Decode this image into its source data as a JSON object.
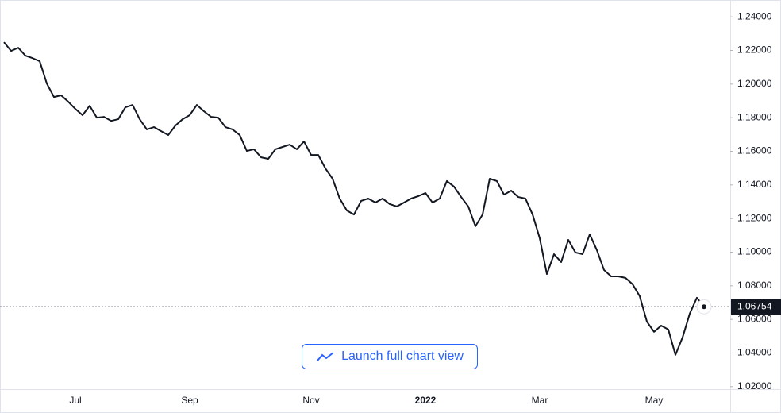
{
  "chart_data": {
    "type": "line",
    "categories": [
      null,
      null,
      null,
      null,
      null,
      null,
      null,
      null,
      null,
      null,
      "Jul",
      null,
      null,
      null,
      null,
      null,
      null,
      null,
      null,
      null,
      null,
      null,
      null,
      null,
      null,
      null,
      "Sep",
      null,
      null,
      null,
      null,
      null,
      null,
      null,
      null,
      null,
      null,
      null,
      null,
      null,
      null,
      null,
      null,
      "Nov",
      null,
      null,
      null,
      null,
      null,
      null,
      null,
      null,
      null,
      null,
      null,
      null,
      null,
      null,
      null,
      "2022",
      null,
      null,
      null,
      null,
      null,
      null,
      null,
      null,
      null,
      null,
      null,
      null,
      null,
      null,
      null,
      "Mar",
      null,
      null,
      null,
      null,
      null,
      null,
      null,
      null,
      null,
      null,
      null,
      null,
      null,
      null,
      null,
      "May",
      null,
      null,
      null,
      null,
      null,
      null,
      null
    ],
    "series": [
      {
        "color": "#131722",
        "values": [
          1.2249,
          1.2197,
          1.2216,
          1.2169,
          1.2154,
          1.2136,
          1.2003,
          1.1923,
          1.1933,
          1.1895,
          1.1852,
          1.1815,
          1.1871,
          1.18,
          1.1805,
          1.1781,
          1.1791,
          1.1862,
          1.1876,
          1.1791,
          1.173,
          1.1744,
          1.172,
          1.1697,
          1.1753,
          1.1791,
          1.1815,
          1.1876,
          1.1838,
          1.1805,
          1.18,
          1.1744,
          1.173,
          1.1697,
          1.1602,
          1.1612,
          1.1564,
          1.1555,
          1.1612,
          1.1626,
          1.164,
          1.1612,
          1.1659,
          1.1578,
          1.1578,
          1.1498,
          1.1437,
          1.1319,
          1.1248,
          1.1224,
          1.1305,
          1.1319,
          1.1295,
          1.1319,
          1.1286,
          1.1272,
          1.1295,
          1.1319,
          1.1333,
          1.1352,
          1.1295,
          1.1319,
          1.1423,
          1.139,
          1.1328,
          1.1272,
          1.1154,
          1.1224,
          1.1437,
          1.1423,
          1.1342,
          1.1366,
          1.1328,
          1.1319,
          1.1224,
          1.1083,
          1.087,
          1.0988,
          1.0941,
          1.1073,
          1.0998,
          1.0988,
          1.1106,
          1.1012,
          1.0894,
          1.0856,
          1.0856,
          1.0847,
          1.0809,
          1.0738,
          1.0587,
          1.0526,
          1.0563,
          1.054,
          1.0389,
          1.0493,
          1.0634,
          1.0729,
          1.06754
        ]
      }
    ],
    "last_value_label": "1.06754",
    "ylim": [
      1.0185,
      1.25
    ],
    "yticks": [
      {
        "value": 1.24,
        "label": "1.24000"
      },
      {
        "value": 1.22,
        "label": "1.22000"
      },
      {
        "value": 1.2,
        "label": "1.20000"
      },
      {
        "value": 1.18,
        "label": "1.18000"
      },
      {
        "value": 1.16,
        "label": "1.16000"
      },
      {
        "value": 1.14,
        "label": "1.14000"
      },
      {
        "value": 1.12,
        "label": "1.12000"
      },
      {
        "value": 1.1,
        "label": "1.10000"
      },
      {
        "value": 1.08,
        "label": "1.08000"
      },
      {
        "value": 1.06,
        "label": "1.06000"
      },
      {
        "value": 1.04,
        "label": "1.04000"
      },
      {
        "value": 1.02,
        "label": "1.02000"
      }
    ],
    "grid": false,
    "button": "Launch full chart view"
  }
}
